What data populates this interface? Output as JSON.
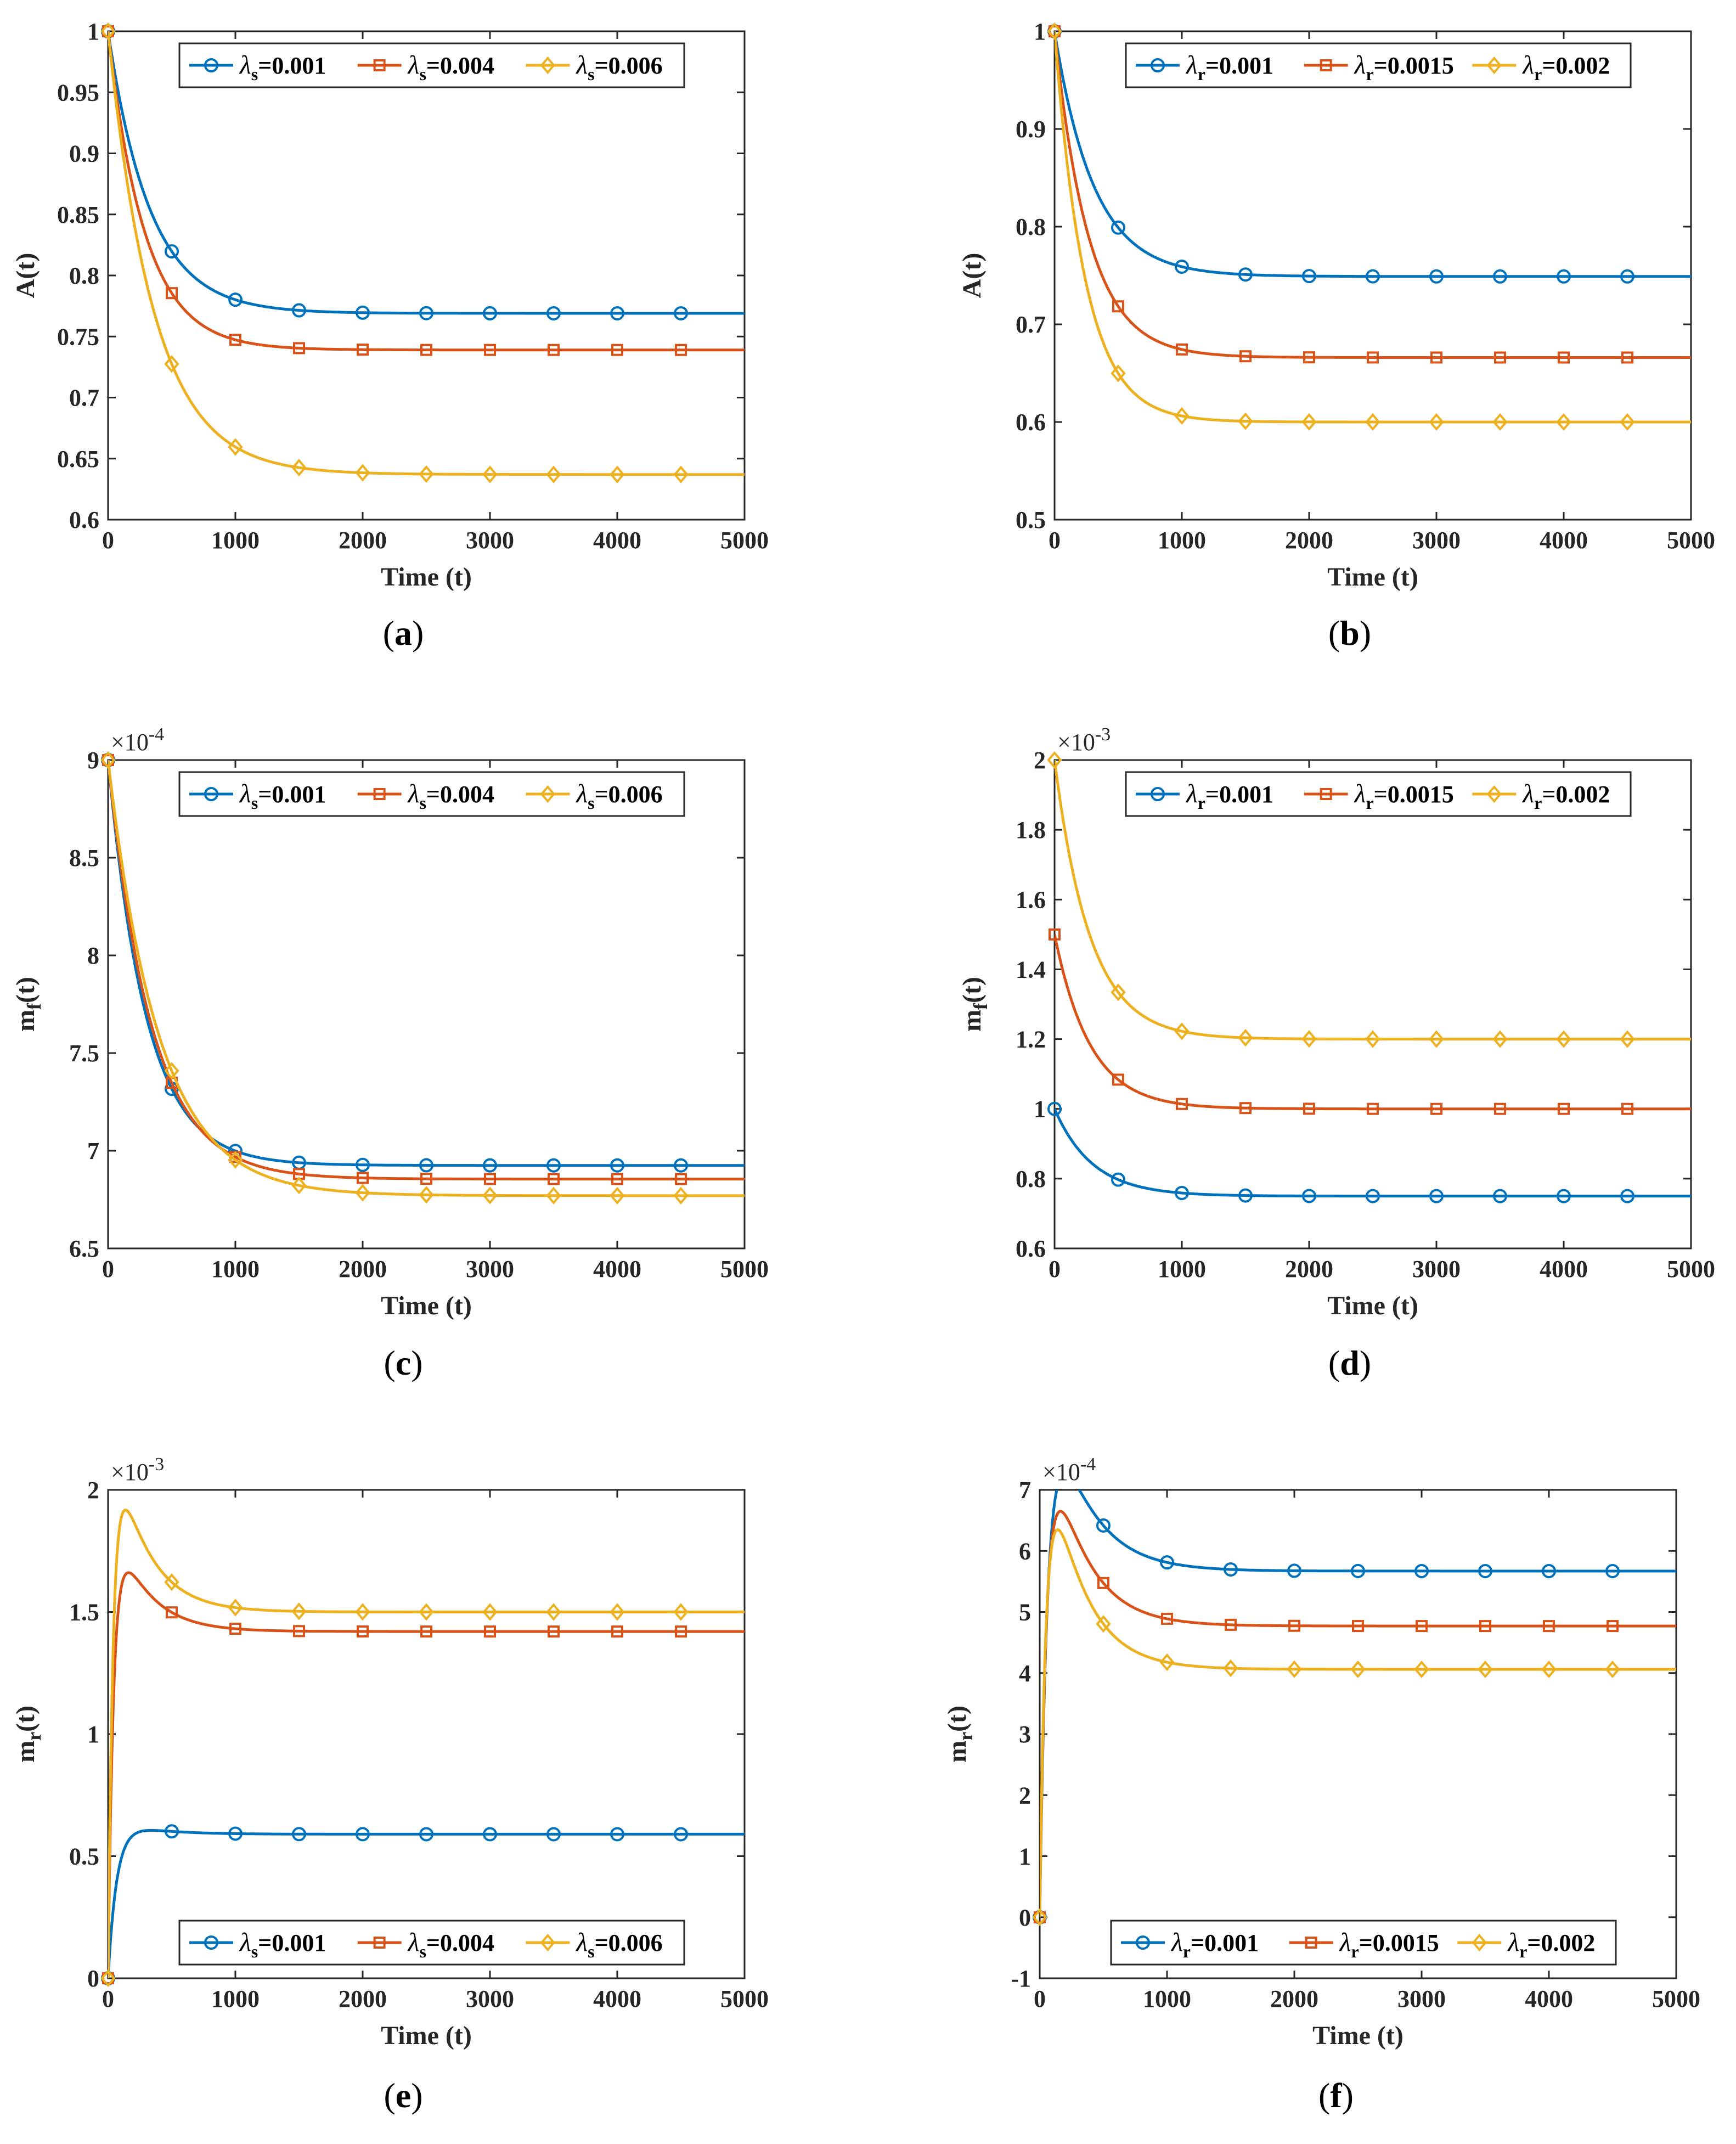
{
  "colors": {
    "blue": "#0072BD",
    "orange": "#D95319",
    "yellow": "#EDB120",
    "axis": "#262626"
  },
  "chart_data": [
    {
      "type": "line",
      "panel_label": "a",
      "xlabel": "Time (t)",
      "ylabel": "A(t)",
      "xlim": [
        0,
        5000
      ],
      "ylim": [
        0.6,
        1.0
      ],
      "xticks": [
        "0",
        "1000",
        "2000",
        "3000",
        "4000",
        "5000"
      ],
      "yticks": [
        "0.6",
        "0.65",
        "0.7",
        "0.75",
        "0.8",
        "0.85",
        "0.9",
        "0.95",
        "1"
      ],
      "exponent": "",
      "legend_position": "top",
      "legend_symbol": "λ",
      "legend_sub": "s",
      "series": [
        {
          "name": "=0.001",
          "color": "#0072BD",
          "marker": "circle",
          "y0": 1.0,
          "yinf": 0.769,
          "tau": 330,
          "peak": 0
        },
        {
          "name": "=0.004",
          "color": "#D95319",
          "marker": "square",
          "y0": 1.0,
          "yinf": 0.739,
          "tau": 290,
          "peak": 0
        },
        {
          "name": "=0.006",
          "color": "#EDB120",
          "marker": "diamond",
          "y0": 1.0,
          "yinf": 0.637,
          "tau": 360,
          "peak": 0
        }
      ]
    },
    {
      "type": "line",
      "panel_label": "b",
      "xlabel": "Time (t)",
      "ylabel": "A(t)",
      "xlim": [
        0,
        5000
      ],
      "ylim": [
        0.5,
        1.0
      ],
      "xticks": [
        "0",
        "1000",
        "2000",
        "3000",
        "4000",
        "5000"
      ],
      "yticks": [
        "0.5",
        "0.6",
        "0.7",
        "0.8",
        "0.9",
        "1"
      ],
      "exponent": "",
      "legend_position": "top",
      "legend_symbol": "λ",
      "legend_sub": "r",
      "series": [
        {
          "name": "=0.001",
          "color": "#0072BD",
          "marker": "circle",
          "y0": 1.0,
          "yinf": 0.749,
          "tau": 310,
          "peak": 0
        },
        {
          "name": "=0.0015",
          "color": "#D95319",
          "marker": "square",
          "y0": 1.0,
          "yinf": 0.666,
          "tau": 270,
          "peak": 0
        },
        {
          "name": "=0.002",
          "color": "#EDB120",
          "marker": "diamond",
          "y0": 1.0,
          "yinf": 0.6,
          "tau": 240,
          "peak": 0
        }
      ]
    },
    {
      "type": "line",
      "panel_label": "c",
      "xlabel": "Time (t)",
      "ylabel": "m_f(t)",
      "xlim": [
        0,
        5000
      ],
      "ylim": [
        6.5,
        9.0
      ],
      "xticks": [
        "0",
        "1000",
        "2000",
        "3000",
        "4000",
        "5000"
      ],
      "yticks": [
        "6.5",
        "7",
        "7.5",
        "8",
        "8.5",
        "9"
      ],
      "exponent": "-4",
      "legend_position": "top",
      "legend_symbol": "λ",
      "legend_sub": "s",
      "series": [
        {
          "name": "=0.001",
          "color": "#0072BD",
          "marker": "circle",
          "y0": 9.0,
          "yinf": 6.925,
          "tau": 300,
          "peak": 0
        },
        {
          "name": "=0.004",
          "color": "#D95319",
          "marker": "square",
          "y0": 9.0,
          "yinf": 6.855,
          "tau": 340,
          "peak": 0
        },
        {
          "name": "=0.006",
          "color": "#EDB120",
          "marker": "diamond",
          "y0": 9.0,
          "yinf": 6.77,
          "tau": 400,
          "peak": 0
        }
      ]
    },
    {
      "type": "line",
      "panel_label": "d",
      "xlabel": "Time (t)",
      "ylabel": "m_f(t)",
      "xlim": [
        0,
        5000
      ],
      "ylim": [
        0.6,
        2.0
      ],
      "xticks": [
        "0",
        "1000",
        "2000",
        "3000",
        "4000",
        "5000"
      ],
      "yticks": [
        "0.6",
        "0.8",
        "1",
        "1.2",
        "1.4",
        "1.6",
        "1.8",
        "2"
      ],
      "exponent": "-3",
      "legend_position": "top",
      "legend_symbol": "λ",
      "legend_sub": "r",
      "series": [
        {
          "name": "=0.001",
          "color": "#0072BD",
          "marker": "circle",
          "y0": 1.0,
          "yinf": 0.75,
          "tau": 300,
          "peak": 0
        },
        {
          "name": "=0.0015",
          "color": "#D95319",
          "marker": "square",
          "y0": 1.5,
          "yinf": 1.0,
          "tau": 280,
          "peak": 0
        },
        {
          "name": "=0.002",
          "color": "#EDB120",
          "marker": "diamond",
          "y0": 2.0,
          "yinf": 1.2,
          "tau": 280,
          "peak": 0
        }
      ]
    },
    {
      "type": "line",
      "panel_label": "e",
      "xlabel": "Time (t)",
      "ylabel": "m_r(t)",
      "xlim": [
        0,
        5000
      ],
      "ylim": [
        0,
        2.0
      ],
      "xticks": [
        "0",
        "1000",
        "2000",
        "3000",
        "4000",
        "5000"
      ],
      "yticks": [
        "0",
        "0.5",
        "1",
        "1.5",
        "2"
      ],
      "exponent": "-3",
      "legend_position": "bottom",
      "legend_symbol": "λ",
      "legend_sub": "s",
      "series": [
        {
          "name": "=0.001",
          "color": "#0072BD",
          "marker": "circle",
          "y0": 0,
          "yinf": 0.59,
          "tau_rise": 70,
          "tau": 300,
          "peak": 0.12
        },
        {
          "name": "=0.004",
          "color": "#D95319",
          "marker": "square",
          "y0": 0,
          "yinf": 1.42,
          "tau_rise": 45,
          "tau": 260,
          "peak": 0.42
        },
        {
          "name": "=0.006",
          "color": "#EDB120",
          "marker": "diamond",
          "y0": 0,
          "yinf": 1.5,
          "tau_rise": 42,
          "tau": 260,
          "peak": 0.62
        }
      ]
    },
    {
      "type": "line",
      "panel_label": "f",
      "xlabel": "Time (t)",
      "ylabel": "m_r(t)",
      "xlim": [
        0,
        5000
      ],
      "ylim": [
        -1,
        7
      ],
      "xticks": [
        "0",
        "1000",
        "2000",
        "3000",
        "4000",
        "5000"
      ],
      "yticks": [
        "-1",
        "0",
        "1",
        "2",
        "3",
        "4",
        "5",
        "6",
        "7"
      ],
      "exponent": "-4",
      "legend_position": "bottom",
      "legend_symbol": "λ",
      "legend_sub": "r",
      "series": [
        {
          "name": "=0.001",
          "color": "#0072BD",
          "marker": "circle",
          "y0": 0,
          "yinf": 5.67,
          "tau_rise": 70,
          "tau": 300,
          "peak": 0.78
        },
        {
          "name": "=0.0015",
          "color": "#D95319",
          "marker": "square",
          "y0": 0,
          "yinf": 4.77,
          "tau_rise": 60,
          "tau": 280,
          "peak": 0.98
        },
        {
          "name": "=0.002",
          "color": "#EDB120",
          "marker": "diamond",
          "y0": 0,
          "yinf": 4.06,
          "tau_rise": 55,
          "tau": 270,
          "peak": 1.3
        }
      ]
    }
  ]
}
